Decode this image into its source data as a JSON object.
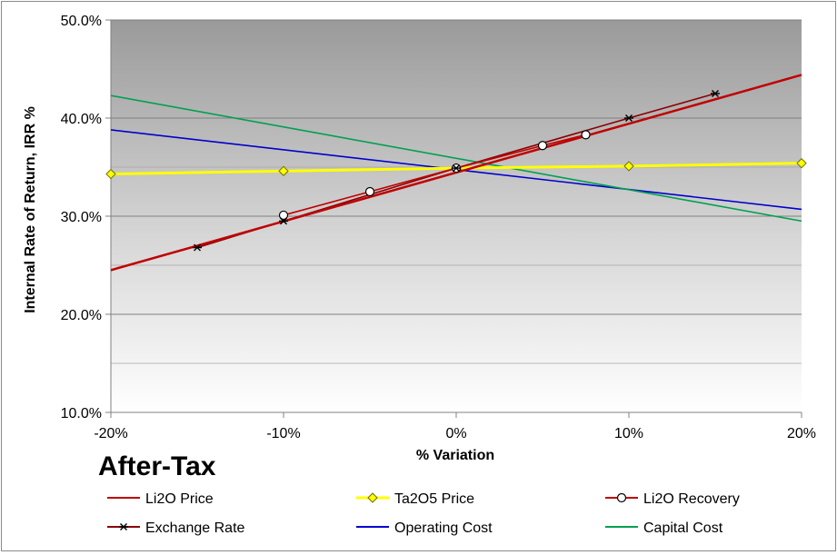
{
  "chart_data": {
    "type": "line",
    "title": "",
    "annotation": "After-Tax",
    "xlabel": "% Variation",
    "ylabel": "Internal Rate of Return, IRR %",
    "xlim": [
      -20,
      20
    ],
    "ylim": [
      10,
      50
    ],
    "x_ticks": [
      -20,
      -10,
      0,
      10,
      20
    ],
    "x_tick_labels": [
      "-20%",
      "-10%",
      "0%",
      "10%",
      "20%"
    ],
    "y_ticks": [
      10,
      20,
      30,
      40,
      50
    ],
    "y_tick_labels": [
      "10.0%",
      "20.0%",
      "30.0%",
      "40.0%",
      "50.0%"
    ],
    "minor_gridlines": [
      15,
      25,
      35,
      45
    ],
    "grid": true,
    "background": "gradient-gray",
    "legend_position": "bottom",
    "series": [
      {
        "name": "Li2O Price",
        "color": "#c00000",
        "marker": "none",
        "x": [
          -20,
          20
        ],
        "y": [
          24.5,
          44.4
        ]
      },
      {
        "name": "Ta2O5 Price",
        "color": "#ffff00",
        "marker": "diamond",
        "x": [
          -20,
          -10,
          0,
          10,
          20
        ],
        "y": [
          34.3,
          34.6,
          34.9,
          35.1,
          35.4
        ]
      },
      {
        "name": "Li2O Recovery",
        "color": "#c00000",
        "marker": "circle",
        "x": [
          -10,
          -5,
          0,
          5,
          7.5
        ],
        "y": [
          30.1,
          32.5,
          34.9,
          37.2,
          38.3
        ]
      },
      {
        "name": "Exchange Rate",
        "color": "#8b0000",
        "marker": "star",
        "x": [
          -15,
          -10,
          0,
          10,
          15
        ],
        "y": [
          26.8,
          29.5,
          34.9,
          40.0,
          42.5
        ]
      },
      {
        "name": "Operating Cost",
        "color": "#0000cc",
        "marker": "none",
        "x": [
          -20,
          20
        ],
        "y": [
          38.8,
          30.7
        ]
      },
      {
        "name": "Capital Cost",
        "color": "#00a050",
        "marker": "none",
        "x": [
          -20,
          20
        ],
        "y": [
          42.3,
          29.5
        ]
      }
    ]
  }
}
